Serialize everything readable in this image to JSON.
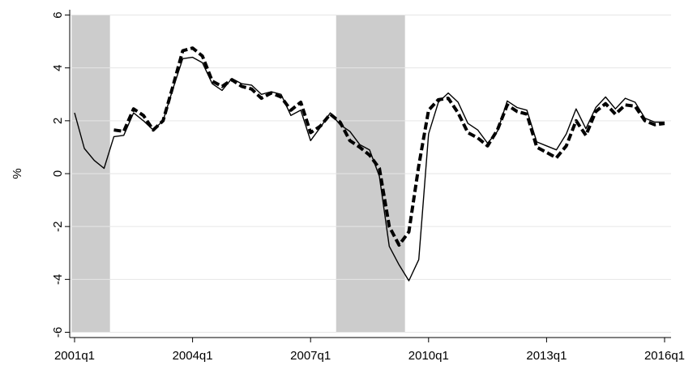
{
  "chart_data": {
    "type": "line",
    "y_label": "%",
    "categories": [
      "2001q1",
      null,
      null,
      null,
      null,
      null,
      null,
      null,
      null,
      null,
      null,
      null,
      "2004q1",
      null,
      null,
      null,
      null,
      null,
      null,
      null,
      null,
      null,
      null,
      null,
      "2007q1",
      null,
      null,
      null,
      null,
      null,
      null,
      null,
      null,
      null,
      null,
      null,
      "2010q1",
      null,
      null,
      null,
      null,
      null,
      null,
      null,
      null,
      null,
      null,
      null,
      "2013q1",
      null,
      null,
      null,
      null,
      null,
      null,
      null,
      null,
      null,
      null,
      null,
      "2016q1"
    ],
    "series": [
      {
        "color": "#000000",
        "dashed": false,
        "values": [
          2.3,
          0.95,
          0.5,
          0.2,
          1.4,
          1.45,
          2.3,
          2.0,
          1.65,
          2.0,
          3.2,
          4.35,
          4.4,
          4.2,
          3.4,
          3.15,
          3.6,
          3.4,
          3.35,
          3.0,
          3.1,
          3.0,
          2.2,
          2.4,
          1.25,
          1.75,
          2.3,
          1.85,
          1.6,
          1.1,
          0.9,
          -0.1,
          -2.75,
          -3.45,
          -4.05,
          -3.25,
          1.5,
          2.7,
          3.05,
          2.7,
          1.9,
          1.65,
          1.15,
          1.6,
          2.75,
          2.5,
          2.4,
          1.2,
          1.05,
          0.9,
          1.5,
          2.45,
          1.7,
          2.5,
          2.9,
          2.45,
          2.85,
          2.7,
          2.1,
          1.95,
          1.95
        ]
      },
      {
        "color": "#000000",
        "dashed": true,
        "values": [
          null,
          null,
          null,
          null,
          1.65,
          1.6,
          2.45,
          2.2,
          1.65,
          2.0,
          3.3,
          4.65,
          4.75,
          4.45,
          3.5,
          3.3,
          3.55,
          3.3,
          3.2,
          2.85,
          3.05,
          2.9,
          2.4,
          2.7,
          1.55,
          1.8,
          2.25,
          1.95,
          1.25,
          1.0,
          0.7,
          0.2,
          -2.0,
          -2.7,
          -2.2,
          0.3,
          2.4,
          2.8,
          2.85,
          2.3,
          1.55,
          1.35,
          1.05,
          1.65,
          2.6,
          2.35,
          2.25,
          1.0,
          0.8,
          0.6,
          1.05,
          2.0,
          1.45,
          2.35,
          2.65,
          2.25,
          2.6,
          2.55,
          2.0,
          1.85,
          1.9
        ]
      }
    ],
    "shaded": [
      [
        -0.3,
        3.6
      ],
      [
        26.6,
        33.6
      ]
    ],
    "shade_color": "#cccccc",
    "ylim": [
      -6.2,
      6.2
    ],
    "yticks": [
      -6,
      -4,
      -2,
      0,
      2,
      4,
      6
    ],
    "grid": true
  }
}
